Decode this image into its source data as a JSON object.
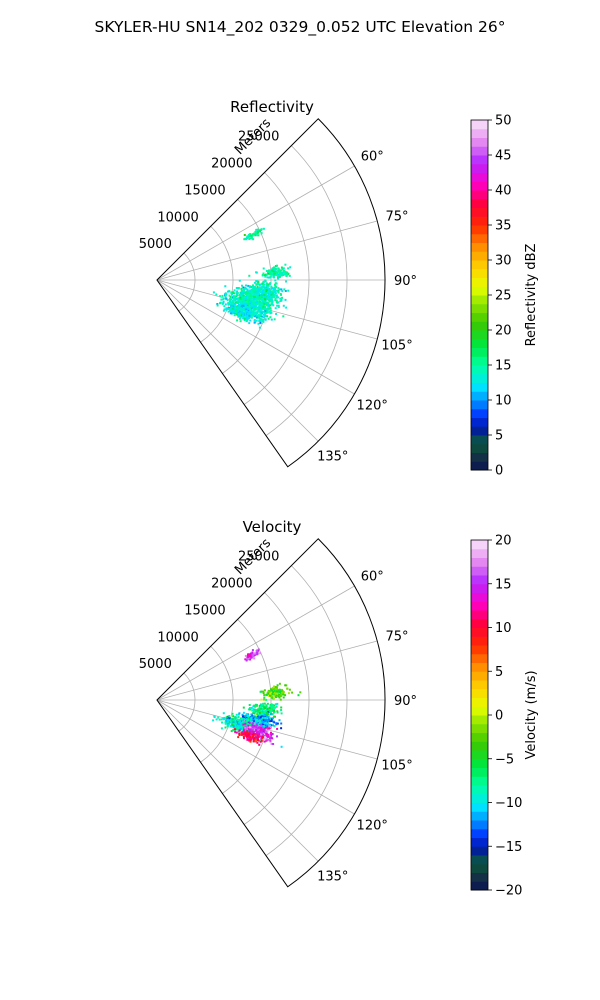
{
  "suptitle": "SKYLER-HU  SN14_202  0329_0.052 UTC Elevation 26°",
  "chart_data": [
    {
      "type": "polar-sector",
      "title": "Reflectivity",
      "range_label": "Meters",
      "range_ticks": [
        5000,
        10000,
        15000,
        20000,
        25000
      ],
      "range_tick_labels": [
        "5000",
        "10000",
        "15000",
        "20000",
        "25000"
      ],
      "rmax": 30000,
      "theta_range_deg": [
        45,
        145
      ],
      "theta_ticks_deg": [
        60,
        75,
        90,
        105,
        120,
        135
      ],
      "theta_tick_labels": [
        "60°",
        "75°",
        "90°",
        "105°",
        "120°",
        "135°"
      ],
      "grid": true,
      "colorbar": {
        "label": "Reflectivity dBZ",
        "vmin": 0,
        "vmax": 50,
        "ticks": [
          0,
          5,
          10,
          15,
          20,
          25,
          30,
          35,
          40,
          45,
          50
        ],
        "tick_labels": [
          "0",
          "5",
          "10",
          "15",
          "20",
          "25",
          "30",
          "35",
          "40",
          "45",
          "50"
        ]
      },
      "clusters": [
        {
          "theta": 96,
          "r": 14000,
          "dtheta": 6,
          "dr": 2800,
          "v": 14,
          "spread": 1.5
        },
        {
          "theta": 103,
          "r": 12500,
          "dtheta": 7,
          "dr": 3500,
          "v": 14,
          "spread": 1.5
        },
        {
          "theta": 110,
          "r": 12000,
          "dtheta": 5,
          "dr": 3000,
          "v": 13,
          "spread": 1.5
        },
        {
          "theta": 86,
          "r": 15500,
          "dtheta": 3,
          "dr": 2000,
          "v": 15,
          "spread": 1.5
        },
        {
          "theta": 64,
          "r": 14000,
          "dtheta": 2,
          "dr": 1200,
          "v": 15,
          "spread": 1.5
        }
      ]
    },
    {
      "type": "polar-sector",
      "title": "Velocity",
      "range_label": "Meters",
      "range_ticks": [
        5000,
        10000,
        15000,
        20000,
        25000
      ],
      "range_tick_labels": [
        "5000",
        "10000",
        "15000",
        "20000",
        "25000"
      ],
      "rmax": 30000,
      "theta_range_deg": [
        45,
        145
      ],
      "theta_ticks_deg": [
        60,
        75,
        90,
        105,
        120,
        135
      ],
      "theta_tick_labels": [
        "60°",
        "75°",
        "90°",
        "105°",
        "120°",
        "135°"
      ],
      "grid": true,
      "colorbar": {
        "label": "Velocity (m/s)",
        "vmin": -20,
        "vmax": 20,
        "ticks": [
          -20,
          -15,
          -10,
          -5,
          0,
          5,
          10,
          15,
          20
        ],
        "tick_labels": [
          "−20",
          "−15",
          "−10",
          "−5",
          "0",
          "5",
          "10",
          "15",
          "20"
        ]
      },
      "clusters": [
        {
          "theta": 86,
          "r": 15500,
          "dtheta": 3,
          "dr": 2000,
          "v": -3,
          "spread": 2
        },
        {
          "theta": 95,
          "r": 14000,
          "dtheta": 4,
          "dr": 2000,
          "v": -7,
          "spread": 2
        },
        {
          "theta": 101,
          "r": 13500,
          "dtheta": 4,
          "dr": 2500,
          "v": -12,
          "spread": 2
        },
        {
          "theta": 106,
          "r": 11500,
          "dtheta": 5,
          "dr": 3000,
          "v": -9,
          "spread": 2
        },
        {
          "theta": 107,
          "r": 14000,
          "dtheta": 4,
          "dr": 2000,
          "v": 15,
          "spread": 2
        },
        {
          "theta": 111,
          "r": 13000,
          "dtheta": 3,
          "dr": 1800,
          "v": 11,
          "spread": 2
        },
        {
          "theta": 64,
          "r": 14000,
          "dtheta": 2,
          "dr": 1200,
          "v": 15,
          "spread": 1.5
        }
      ]
    }
  ]
}
